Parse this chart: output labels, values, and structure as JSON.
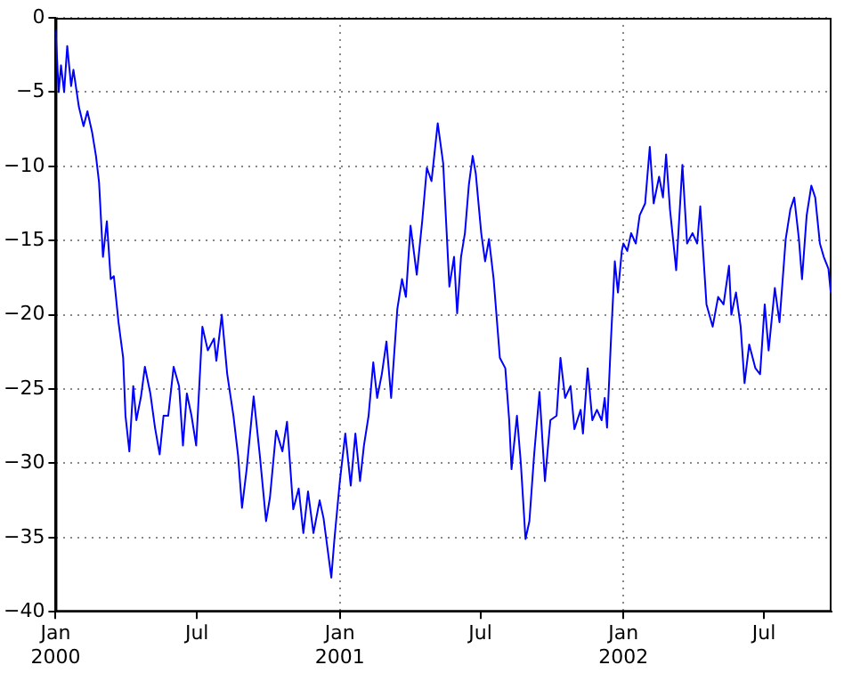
{
  "chart_data": {
    "type": "line",
    "xlim": [
      "2000-01-01",
      "2002-09-26"
    ],
    "xticks": [
      {
        "value": "2000-01-01",
        "label": "Jan\n2000"
      },
      {
        "value": "2000-07-01",
        "label": "Jul"
      },
      {
        "value": "2001-01-01",
        "label": "Jan\n2001"
      },
      {
        "value": "2001-07-01",
        "label": "Jul"
      },
      {
        "value": "2002-01-01",
        "label": "Jan\n2002"
      },
      {
        "value": "2002-07-01",
        "label": "Jul"
      }
    ],
    "ylim": [
      -40,
      0
    ],
    "yticks": [
      -40,
      -35,
      -30,
      -25,
      -20,
      -15,
      -10,
      -5,
      0
    ],
    "grid": true,
    "marker": "none",
    "line_style": "solid",
    "series": [
      {
        "color": "#0000ff",
        "x": [
          "2000-01-01",
          "2000-01-05",
          "2000-01-08",
          "2000-01-12",
          "2000-01-16",
          "2000-01-21",
          "2000-01-24",
          "2000-01-31",
          "2000-02-06",
          "2000-02-11",
          "2000-02-17",
          "2000-02-22",
          "2000-02-26",
          "2000-03-02",
          "2000-03-07",
          "2000-03-12",
          "2000-03-16",
          "2000-03-22",
          "2000-03-28",
          "2000-03-31",
          "2000-04-05",
          "2000-04-10",
          "2000-04-14",
          "2000-04-20",
          "2000-04-25",
          "2000-05-02",
          "2000-05-08",
          "2000-05-14",
          "2000-05-19",
          "2000-05-25",
          "2000-06-01",
          "2000-06-08",
          "2000-06-13",
          "2000-06-18",
          "2000-06-24",
          "2000-06-30",
          "2000-07-08",
          "2000-07-15",
          "2000-07-23",
          "2000-07-26",
          "2000-08-02",
          "2000-08-09",
          "2000-08-17",
          "2000-08-23",
          "2000-08-28",
          "2000-09-03",
          "2000-09-12",
          "2000-09-20",
          "2000-09-28",
          "2000-10-03",
          "2000-10-11",
          "2000-10-19",
          "2000-10-25",
          "2000-11-02",
          "2000-11-09",
          "2000-11-15",
          "2000-11-21",
          "2000-11-28",
          "2000-12-06",
          "2000-12-11",
          "2000-12-21",
          "2000-12-25",
          "2001-01-01",
          "2001-01-08",
          "2001-01-15",
          "2001-01-21",
          "2001-01-27",
          "2001-02-01",
          "2001-02-07",
          "2001-02-13",
          "2001-02-18",
          "2001-02-24",
          "2001-03-02",
          "2001-03-08",
          "2001-03-16",
          "2001-03-22",
          "2001-03-27",
          "2001-04-02",
          "2001-04-10",
          "2001-04-17",
          "2001-04-23",
          "2001-04-29",
          "2001-05-07",
          "2001-05-14",
          "2001-05-22",
          "2001-05-28",
          "2001-06-01",
          "2001-06-06",
          "2001-06-11",
          "2001-06-16",
          "2001-06-21",
          "2001-06-25",
          "2001-07-02",
          "2001-07-07",
          "2001-07-12",
          "2001-07-18",
          "2001-07-26",
          "2001-08-02",
          "2001-08-07",
          "2001-08-10",
          "2001-08-17",
          "2001-08-22",
          "2001-08-28",
          "2001-09-02",
          "2001-09-08",
          "2001-09-15",
          "2001-09-22",
          "2001-09-29",
          "2001-10-07",
          "2001-10-12",
          "2001-10-18",
          "2001-10-25",
          "2001-10-30",
          "2001-11-07",
          "2001-11-10",
          "2001-11-16",
          "2001-11-22",
          "2001-11-28",
          "2001-12-04",
          "2001-12-08",
          "2001-12-11",
          "2001-12-16",
          "2001-12-21",
          "2001-12-25",
          "2001-12-30",
          "2002-01-01",
          "2002-01-06",
          "2002-01-11",
          "2002-01-17",
          "2002-01-22",
          "2002-01-29",
          "2002-02-04",
          "2002-02-09",
          "2002-02-16",
          "2002-02-21",
          "2002-02-25",
          "2002-03-02",
          "2002-03-10",
          "2002-03-18",
          "2002-03-24",
          "2002-03-31",
          "2002-04-06",
          "2002-04-10",
          "2002-04-18",
          "2002-04-26",
          "2002-05-03",
          "2002-05-10",
          "2002-05-17",
          "2002-05-20",
          "2002-05-26",
          "2002-06-01",
          "2002-06-06",
          "2002-06-12",
          "2002-06-20",
          "2002-06-26",
          "2002-07-02",
          "2002-07-07",
          "2002-07-15",
          "2002-07-21",
          "2002-07-29",
          "2002-08-04",
          "2002-08-09",
          "2002-08-15",
          "2002-08-19",
          "2002-08-25",
          "2002-08-31",
          "2002-09-05",
          "2002-09-11",
          "2002-09-16",
          "2002-09-22",
          "2002-09-25"
        ],
        "values": [
          -0.8,
          -5.0,
          -3.2,
          -5.0,
          -1.9,
          -4.6,
          -3.5,
          -6.0,
          -7.3,
          -6.3,
          -7.7,
          -9.3,
          -11.1,
          -16.1,
          -13.7,
          -17.6,
          -17.4,
          -20.5,
          -22.9,
          -26.8,
          -29.2,
          -24.8,
          -27.1,
          -25.5,
          -23.5,
          -25.3,
          -27.6,
          -29.4,
          -26.8,
          -26.8,
          -23.5,
          -24.8,
          -28.8,
          -25.3,
          -26.8,
          -28.8,
          -20.8,
          -22.4,
          -21.6,
          -23.1,
          -20.0,
          -24.0,
          -26.8,
          -29.5,
          -33.0,
          -30.4,
          -25.5,
          -29.5,
          -33.9,
          -32.3,
          -27.8,
          -29.2,
          -27.2,
          -33.1,
          -31.7,
          -34.7,
          -31.9,
          -34.7,
          -32.5,
          -33.7,
          -37.7,
          -35.1,
          -31.2,
          -28.0,
          -31.5,
          -28.0,
          -31.2,
          -28.8,
          -26.8,
          -23.2,
          -25.6,
          -24.0,
          -21.8,
          -25.6,
          -19.6,
          -17.6,
          -18.8,
          -14.0,
          -17.3,
          -13.7,
          -10.1,
          -11.0,
          -7.1,
          -9.8,
          -18.1,
          -16.1,
          -19.9,
          -16.1,
          -14.5,
          -11.3,
          -9.3,
          -10.5,
          -14.5,
          -16.4,
          -14.9,
          -17.6,
          -22.9,
          -23.6,
          -27.1,
          -30.4,
          -26.8,
          -30.0,
          -35.1,
          -33.9,
          -29.5,
          -25.2,
          -31.2,
          -27.1,
          -26.8,
          -22.9,
          -25.6,
          -24.8,
          -27.7,
          -26.4,
          -28.0,
          -23.6,
          -27.1,
          -26.4,
          -27.1,
          -25.6,
          -27.6,
          -21.7,
          -16.4,
          -18.5,
          -15.7,
          -15.2,
          -15.7,
          -14.5,
          -15.2,
          -13.3,
          -12.5,
          -8.7,
          -12.5,
          -10.7,
          -12.1,
          -9.2,
          -12.9,
          -17.0,
          -9.9,
          -15.2,
          -14.5,
          -15.2,
          -12.7,
          -19.3,
          -20.8,
          -18.8,
          -19.3,
          -16.7,
          -20.0,
          -18.5,
          -20.8,
          -24.6,
          -22.0,
          -23.6,
          -24.0,
          -19.3,
          -22.4,
          -18.2,
          -20.5,
          -14.9,
          -12.9,
          -12.1,
          -14.9,
          -17.6,
          -13.3,
          -11.3,
          -12.1,
          -15.2,
          -16.1,
          -16.9,
          -18.5
        ]
      }
    ]
  }
}
